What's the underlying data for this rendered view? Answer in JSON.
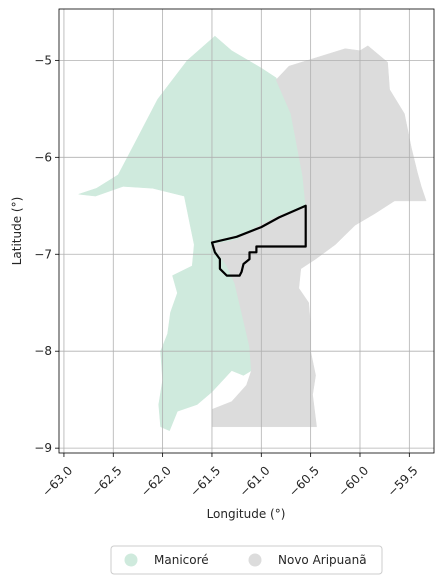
{
  "chart_data": {
    "type": "map",
    "xlabel": "Longitude (°)",
    "ylabel": "Latitude (°)",
    "xlim": [
      -63.05,
      -59.25
    ],
    "ylim": [
      -9.05,
      -4.47
    ],
    "x_ticks": [
      -63.0,
      -62.5,
      -62.0,
      -61.5,
      -61.0,
      -60.5,
      -60.0,
      -59.5
    ],
    "x_tick_labels": [
      "−63.0",
      "−62.5",
      "−62.0",
      "−61.5",
      "−61.0",
      "−60.5",
      "−60.0",
      "−59.5"
    ],
    "y_ticks": [
      -9,
      -8,
      -7,
      -6,
      -5
    ],
    "y_tick_labels": [
      "−9",
      "−8",
      "−7",
      "−6",
      "−5"
    ],
    "grid": true,
    "legend_position": "bottom-center",
    "regions": [
      {
        "name": "Manicoré",
        "color": "#cfeadd",
        "outline": [
          [
            -62.85,
            -6.38
          ],
          [
            -62.67,
            -6.32
          ],
          [
            -62.45,
            -6.18
          ],
          [
            -62.28,
            -5.85
          ],
          [
            -62.05,
            -5.4
          ],
          [
            -61.75,
            -5.0
          ],
          [
            -61.47,
            -4.75
          ],
          [
            -61.3,
            -4.9
          ],
          [
            -61.0,
            -5.08
          ],
          [
            -60.85,
            -5.18
          ],
          [
            -60.7,
            -5.55
          ],
          [
            -60.58,
            -6.2
          ],
          [
            -60.55,
            -6.5
          ],
          [
            -60.82,
            -6.6
          ],
          [
            -61.05,
            -6.72
          ],
          [
            -61.25,
            -6.85
          ],
          [
            -61.5,
            -6.9
          ],
          [
            -61.4,
            -7.05
          ],
          [
            -61.3,
            -7.15
          ],
          [
            -61.22,
            -7.35
          ],
          [
            -61.2,
            -7.55
          ],
          [
            -61.12,
            -7.75
          ],
          [
            -61.08,
            -8.0
          ],
          [
            -61.1,
            -8.2
          ],
          [
            -61.18,
            -8.25
          ],
          [
            -61.3,
            -8.2
          ],
          [
            -61.5,
            -8.42
          ],
          [
            -61.65,
            -8.55
          ],
          [
            -61.85,
            -8.62
          ],
          [
            -61.93,
            -8.82
          ],
          [
            -62.02,
            -8.78
          ],
          [
            -62.04,
            -8.55
          ],
          [
            -62.0,
            -8.3
          ],
          [
            -62.02,
            -8.0
          ],
          [
            -61.95,
            -7.82
          ],
          [
            -61.92,
            -7.6
          ],
          [
            -61.85,
            -7.4
          ],
          [
            -61.9,
            -7.22
          ],
          [
            -61.7,
            -7.12
          ],
          [
            -61.68,
            -6.9
          ],
          [
            -61.72,
            -6.7
          ],
          [
            -61.78,
            -6.4
          ],
          [
            -62.1,
            -6.32
          ],
          [
            -62.4,
            -6.3
          ],
          [
            -62.68,
            -6.4
          ]
        ]
      },
      {
        "name": "Novo Aripuanã",
        "color": "#dcdcdc",
        "outline": [
          [
            -60.72,
            -5.06
          ],
          [
            -60.15,
            -4.88
          ],
          [
            -60.0,
            -4.9
          ],
          [
            -59.92,
            -4.85
          ],
          [
            -59.72,
            -5.02
          ],
          [
            -59.7,
            -5.3
          ],
          [
            -59.55,
            -5.55
          ],
          [
            -59.48,
            -5.9
          ],
          [
            -59.42,
            -6.15
          ],
          [
            -59.38,
            -6.3
          ],
          [
            -59.33,
            -6.45
          ],
          [
            -59.65,
            -6.45
          ],
          [
            -59.85,
            -6.58
          ],
          [
            -60.05,
            -6.7
          ],
          [
            -60.25,
            -6.9
          ],
          [
            -60.45,
            -7.05
          ],
          [
            -60.6,
            -7.15
          ],
          [
            -60.62,
            -7.35
          ],
          [
            -60.52,
            -7.5
          ],
          [
            -60.5,
            -7.75
          ],
          [
            -60.5,
            -8.0
          ],
          [
            -60.45,
            -8.25
          ],
          [
            -60.48,
            -8.45
          ],
          [
            -60.44,
            -8.78
          ],
          [
            -61.5,
            -8.78
          ],
          [
            -61.5,
            -8.6
          ],
          [
            -61.3,
            -8.52
          ],
          [
            -61.15,
            -8.35
          ],
          [
            -61.1,
            -8.2
          ],
          [
            -61.12,
            -7.95
          ],
          [
            -61.2,
            -7.6
          ],
          [
            -61.27,
            -7.3
          ],
          [
            -61.35,
            -7.12
          ],
          [
            -61.5,
            -6.9
          ],
          [
            -61.25,
            -6.85
          ],
          [
            -61.05,
            -6.72
          ],
          [
            -60.82,
            -6.6
          ],
          [
            -60.55,
            -6.5
          ],
          [
            -60.58,
            -6.2
          ],
          [
            -60.7,
            -5.55
          ],
          [
            -60.85,
            -5.2
          ]
        ]
      }
    ],
    "highlight": {
      "color": "#000000",
      "outline": [
        [
          -61.5,
          -6.88
        ],
        [
          -61.25,
          -6.82
        ],
        [
          -61.0,
          -6.72
        ],
        [
          -60.82,
          -6.62
        ],
        [
          -60.55,
          -6.5
        ],
        [
          -60.55,
          -6.92
        ],
        [
          -61.05,
          -6.92
        ],
        [
          -61.05,
          -6.98
        ],
        [
          -61.12,
          -6.98
        ],
        [
          -61.12,
          -7.05
        ],
        [
          -61.18,
          -7.1
        ],
        [
          -61.2,
          -7.18
        ],
        [
          -61.22,
          -7.22
        ],
        [
          -61.35,
          -7.22
        ],
        [
          -61.42,
          -7.15
        ],
        [
          -61.42,
          -7.05
        ],
        [
          -61.47,
          -6.98
        ]
      ]
    },
    "legend": [
      {
        "label": "Manicoré",
        "color": "#cfeadd"
      },
      {
        "label": "Novo Aripuanã",
        "color": "#dcdcdc"
      }
    ]
  }
}
